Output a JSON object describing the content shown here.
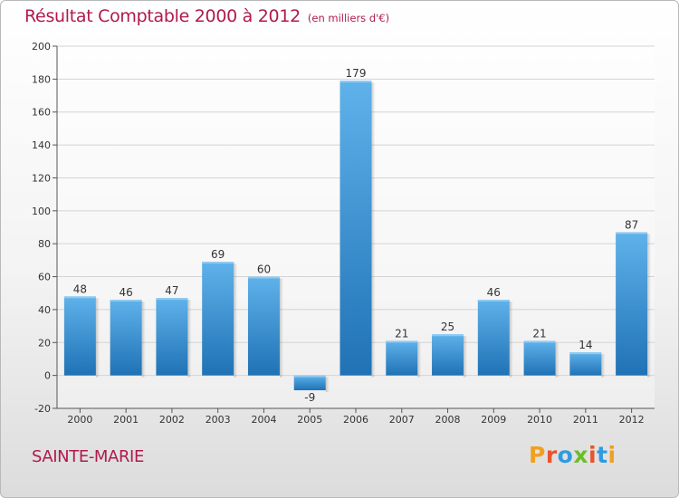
{
  "chart_data": {
    "type": "bar",
    "title": "Résultat Comptable 2000 à 2012",
    "subtitle": "(en milliers d'€)",
    "categories": [
      "2000",
      "2001",
      "2002",
      "2003",
      "2004",
      "2005",
      "2006",
      "2007",
      "2008",
      "2009",
      "2010",
      "2011",
      "2012"
    ],
    "values": [
      48,
      46,
      47,
      69,
      60,
      -9,
      179,
      21,
      25,
      46,
      21,
      14,
      87
    ],
    "ylim": [
      -20,
      200
    ],
    "yticks": [
      -20,
      0,
      20,
      40,
      60,
      80,
      100,
      120,
      140,
      160,
      180,
      200
    ],
    "xlabel": "",
    "ylabel": "",
    "grid": true,
    "legend": "none"
  },
  "footer": {
    "city": "SAINTE-MARIE",
    "logo": "Proxiti"
  },
  "colors": {
    "title": "#b01a4b",
    "bar_top": "#5fb2ea",
    "bar_bottom": "#1f72b5",
    "grid": "#d4d4d4"
  }
}
